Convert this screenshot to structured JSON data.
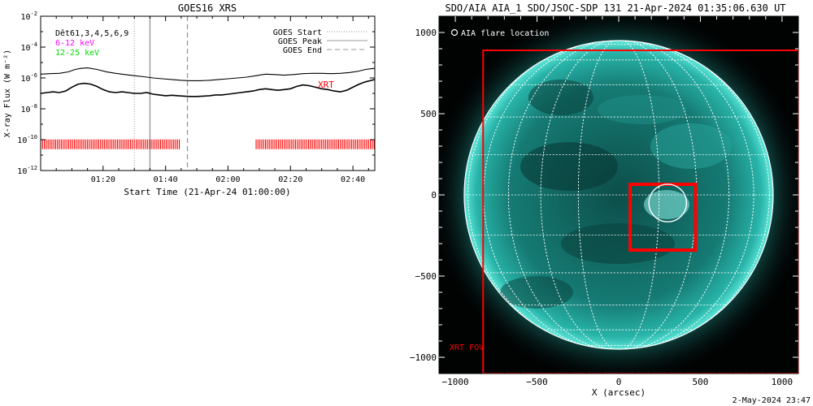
{
  "footer": {
    "timestamp": "2-May-2024 23:47"
  },
  "colors": {
    "background": "#ffffff",
    "axis": "#000000",
    "xrt": "#ff0000",
    "low_band": "#ff00ff",
    "high_band": "#00dd00",
    "sun": "#1a9a92",
    "grid": "#ffffff"
  },
  "chart_data": [
    {
      "type": "line",
      "title": "GOES16 XRS",
      "xlabel": "Start Time (21-Apr-24 01:00:00)",
      "ylabel": "X-ray Flux (W m⁻²)",
      "y_scale": "log",
      "xlim_minutes": [
        0,
        107
      ],
      "ylim": [
        1e-12,
        0.01
      ],
      "x_ticks": [
        {
          "t": 20,
          "label": "01:20"
        },
        {
          "t": 40,
          "label": "01:40"
        },
        {
          "t": 60,
          "label": "02:00"
        },
        {
          "t": 80,
          "label": "02:20"
        },
        {
          "t": 100,
          "label": "02:40"
        }
      ],
      "y_ticks": [
        {
          "v": -2,
          "base": "10",
          "exp": "-2"
        },
        {
          "v": -4,
          "base": "10",
          "exp": "-4"
        },
        {
          "v": -6,
          "base": "10",
          "exp": "-6"
        },
        {
          "v": -8,
          "base": "10",
          "exp": "-8"
        },
        {
          "v": -10,
          "base": "10",
          "exp": "-10"
        },
        {
          "v": -12,
          "base": "10",
          "exp": "-12"
        }
      ],
      "legend_left": [
        {
          "text": "Dêt61,3,4,5,6,9",
          "color": "#000000"
        },
        {
          "text": "6-12 keV",
          "color": "#ff00ff"
        },
        {
          "text": "12-25 keV",
          "color": "#00dd00"
        }
      ],
      "legend_right": [
        {
          "text": "GOES Start",
          "style": "dotted"
        },
        {
          "text": "GOES Peak",
          "style": "solid"
        },
        {
          "text": "GOES End",
          "style": "dashed"
        }
      ],
      "markers": {
        "goes_start": 30,
        "goes_peak": 35,
        "goes_end": 47
      },
      "xrt_label": "XRT",
      "xrt_log_level": -10.3,
      "xrt_coverage": [
        [
          0,
          45
        ],
        [
          69,
          107
        ]
      ],
      "series": [
        {
          "x": [
            0,
            3,
            6,
            9,
            11,
            13,
            15,
            18,
            21,
            24,
            27,
            30,
            33,
            36,
            39,
            42,
            45,
            48,
            51,
            54,
            57,
            60,
            63,
            66,
            69,
            72,
            75,
            78,
            81,
            84,
            87,
            90,
            93,
            96,
            99,
            102,
            104,
            106,
            107
          ],
          "log_values": [
            -5.75,
            -5.72,
            -5.7,
            -5.6,
            -5.45,
            -5.38,
            -5.35,
            -5.45,
            -5.6,
            -5.7,
            -5.78,
            -5.85,
            -5.92,
            -6.0,
            -6.05,
            -6.1,
            -6.15,
            -6.18,
            -6.18,
            -6.15,
            -6.1,
            -6.05,
            -6.0,
            -5.95,
            -5.85,
            -5.75,
            -5.78,
            -5.82,
            -5.78,
            -5.72,
            -5.7,
            -5.7,
            -5.72,
            -5.7,
            -5.65,
            -5.55,
            -5.45,
            -5.4,
            -5.38
          ]
        },
        {
          "x": [
            0,
            2,
            4,
            6,
            8,
            10,
            12,
            14,
            16,
            18,
            20,
            22,
            24,
            26,
            28,
            30,
            32,
            34,
            36,
            38,
            40,
            42,
            44,
            46,
            48,
            50,
            52,
            54,
            56,
            58,
            60,
            62,
            64,
            66,
            68,
            70,
            72,
            74,
            76,
            78,
            80,
            82,
            84,
            86,
            88,
            90,
            92,
            94,
            96,
            98,
            100,
            102,
            104,
            106,
            107
          ],
          "log_values": [
            -7.0,
            -6.95,
            -6.9,
            -6.95,
            -6.85,
            -6.6,
            -6.4,
            -6.35,
            -6.4,
            -6.55,
            -6.75,
            -6.9,
            -6.95,
            -6.9,
            -6.95,
            -7.0,
            -7.0,
            -6.95,
            -7.05,
            -7.1,
            -7.15,
            -7.12,
            -7.15,
            -7.18,
            -7.2,
            -7.2,
            -7.18,
            -7.15,
            -7.1,
            -7.1,
            -7.05,
            -7.0,
            -6.95,
            -6.9,
            -6.85,
            -6.75,
            -6.7,
            -6.75,
            -6.8,
            -6.75,
            -6.7,
            -6.55,
            -6.45,
            -6.5,
            -6.6,
            -6.7,
            -6.75,
            -6.85,
            -6.9,
            -6.8,
            -6.6,
            -6.4,
            -6.25,
            -6.15,
            -6.1
          ]
        }
      ]
    },
    {
      "type": "image",
      "title": "SDO/AIA AIA_1 SDO/JSOC-SDP 131 21-Apr-2024 01:35:06.630 UT",
      "xlabel": "X (arcsec)",
      "ylabel": "",
      "xlim": [
        -1100,
        1100
      ],
      "ylim": [
        -1100,
        1100
      ],
      "x_ticks": [
        -1000,
        -500,
        0,
        500,
        1000
      ],
      "y_ticks": [
        1000,
        500,
        0,
        -500,
        -1000
      ],
      "x_tick_labels": [
        "−1000",
        "−500",
        "0",
        "500",
        "1000"
      ],
      "y_tick_labels": [
        "1000",
        "500",
        "0",
        "−500",
        "−1000"
      ],
      "solar_radius_arcsec": 955,
      "legend_text": "AIA flare location",
      "xrt_fov": {
        "label": "XRT FOV",
        "x": [
          -830,
          1100
        ],
        "y": [
          -1100,
          890
        ]
      },
      "flare_box": {
        "x": [
          70,
          470
        ],
        "y": [
          -340,
          65
        ]
      },
      "flare_circle": {
        "x": 300,
        "y": -50,
        "r": 115
      }
    }
  ]
}
